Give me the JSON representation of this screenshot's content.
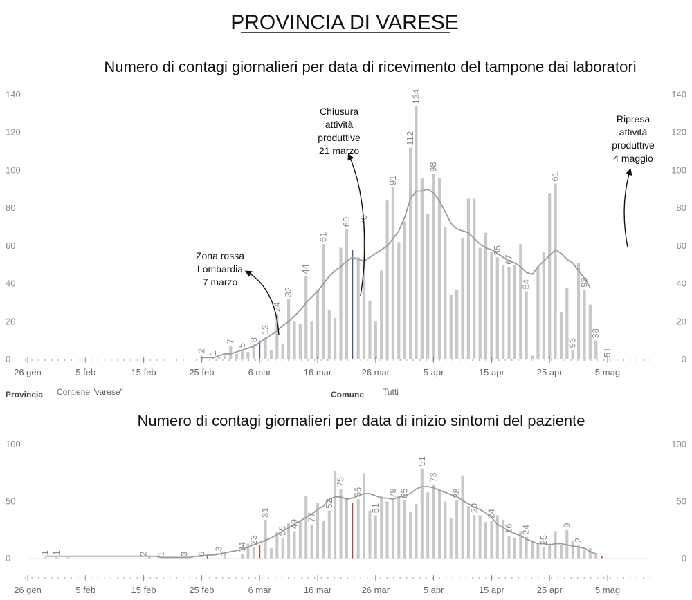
{
  "header": {
    "title": "PROVINCIA DI VARESE"
  },
  "filters": {
    "provincia_label": "Provincia",
    "provincia_value": "Contiene \"varese\"",
    "comune_label": "Comune",
    "comune_value": "Tutti"
  },
  "chart_data": [
    {
      "type": "bar",
      "title": "Numero di contagi giornalieri per data di ricevimento del tampone dai laboratori",
      "xlabel": "",
      "ylabel": "",
      "ylim": [
        0,
        140
      ],
      "yticks": [
        0,
        20,
        40,
        60,
        80,
        100,
        120,
        140
      ],
      "xticks": [
        "26 gen",
        "5 feb",
        "15 feb",
        "25 feb",
        "6 mar",
        "16 mar",
        "26 mar",
        "5 apr",
        "15 apr",
        "25 apr",
        "5 mag"
      ],
      "x_start": "2020-01-26",
      "x_end": "2020-05-10",
      "bar_start": "2020-02-25",
      "values": [
        2,
        0,
        1,
        1,
        2,
        7,
        3,
        5,
        4,
        8,
        10,
        12,
        5,
        24,
        8,
        32,
        20,
        19,
        44,
        20,
        37,
        61,
        26,
        22,
        59,
        69,
        58,
        54,
        70,
        31,
        20,
        47,
        84,
        91,
        62,
        73,
        112,
        134,
        96,
        77,
        98,
        96,
        70,
        34,
        37,
        64,
        85,
        85,
        59,
        67,
        57,
        54,
        50,
        49,
        50,
        61,
        36,
        2,
        49,
        57,
        88,
        93,
        25,
        38,
        5,
        51,
        37,
        29,
        10
      ],
      "highlight_dates": [
        "2020-03-06",
        "2020-03-22",
        "2020-05-05"
      ],
      "data_labels": [
        {
          "date": "2020-02-25",
          "label": "2"
        },
        {
          "date": "2020-02-27",
          "label": "1"
        },
        {
          "date": "2020-03-01",
          "label": "7"
        },
        {
          "date": "2020-03-03",
          "label": "5"
        },
        {
          "date": "2020-03-05",
          "label": "8"
        },
        {
          "date": "2020-03-07",
          "label": "12"
        },
        {
          "date": "2020-03-09",
          "label": "24"
        },
        {
          "date": "2020-03-11",
          "label": "32"
        },
        {
          "date": "2020-03-14",
          "label": "44"
        },
        {
          "date": "2020-03-17",
          "label": "61"
        },
        {
          "date": "2020-03-21",
          "label": "69"
        },
        {
          "date": "2020-03-24",
          "label": "70"
        },
        {
          "date": "2020-03-29",
          "label": "91"
        },
        {
          "date": "2020-04-01",
          "label": "112"
        },
        {
          "date": "2020-04-02",
          "label": "134"
        },
        {
          "date": "2020-04-05",
          "label": "98"
        },
        {
          "date": "2020-04-16",
          "label": "85"
        },
        {
          "date": "2020-04-18",
          "label": "67"
        },
        {
          "date": "2020-04-21",
          "label": "54"
        },
        {
          "date": "2020-04-26",
          "label": "61"
        },
        {
          "date": "2020-04-29",
          "label": "93"
        },
        {
          "date": "2020-05-01",
          "label": "93"
        },
        {
          "date": "2020-05-03",
          "label": "38"
        },
        {
          "date": "2020-05-05",
          "label": "51"
        }
      ],
      "moving_average": [
        1,
        1,
        1,
        2,
        3,
        3,
        4,
        5,
        6,
        7,
        9,
        11,
        13,
        15,
        18,
        20,
        23,
        26,
        30,
        33,
        36,
        40,
        44,
        47,
        49,
        52,
        54,
        53,
        52,
        54,
        56,
        58,
        60,
        64,
        68,
        75,
        85,
        89,
        89,
        90,
        88,
        84,
        78,
        72,
        69,
        68,
        67,
        64,
        61,
        59,
        58,
        56,
        54,
        52,
        51,
        49,
        46,
        45,
        49,
        52,
        55,
        58,
        56,
        53,
        51,
        47,
        43,
        38
      ],
      "annotations": [
        {
          "id": "zona_rossa",
          "lines": [
            "Zona rossa",
            "Lombardia",
            "7 marzo"
          ]
        },
        {
          "id": "chiusura",
          "lines": [
            "Chiusura",
            "attività",
            "produttive",
            "21 marzo"
          ]
        },
        {
          "id": "ripresa",
          "lines": [
            "Ripresa",
            "attività",
            "produttive",
            "4 maggio"
          ]
        }
      ]
    },
    {
      "type": "bar",
      "title": "Numero di contagi giornalieri per data di inizio sintomi del paziente",
      "xlabel": "",
      "ylabel": "",
      "ylim": [
        0,
        100
      ],
      "yticks": [
        0,
        50,
        100
      ],
      "xticks": [
        "26 gen",
        "5 feb",
        "15 feb",
        "25 feb",
        "6 mar",
        "16 mar",
        "26 mar",
        "5 apr",
        "15 apr",
        "25 apr",
        "5 mag"
      ],
      "x_start": "2020-01-26",
      "x_end": "2020-05-10",
      "bar_start": "2020-01-29",
      "values": [
        1,
        0,
        1,
        0,
        1,
        0,
        0,
        0,
        0,
        0,
        0,
        0,
        0,
        0,
        0,
        0,
        0,
        0,
        2,
        0,
        0,
        1,
        0,
        0,
        0,
        0,
        0,
        0,
        3,
        0,
        0,
        6,
        0,
        0,
        4,
        13,
        10,
        12,
        34,
        9,
        23,
        18,
        31,
        24,
        33,
        55,
        30,
        49,
        33,
        42,
        77,
        61,
        52,
        49,
        52,
        75,
        42,
        38,
        55,
        50,
        51,
        54,
        51,
        41,
        48,
        79,
        58,
        65,
        60,
        50,
        35,
        51,
        73,
        46,
        38,
        38,
        32,
        33,
        38,
        34,
        20,
        18,
        24,
        19,
        16,
        14,
        10,
        13,
        24,
        12,
        25,
        16,
        12,
        8,
        9,
        5,
        2
      ],
      "highlight_dates": [
        "2020-02-23",
        "2020-02-26",
        "2020-03-06",
        "2020-03-22",
        "2020-05-04"
      ],
      "data_labels": [
        {
          "date": "2020-01-29",
          "label": "1"
        },
        {
          "date": "2020-01-31",
          "label": "1"
        },
        {
          "date": "2020-02-15",
          "label": "2"
        },
        {
          "date": "2020-02-18",
          "label": "1"
        },
        {
          "date": "2020-02-22",
          "label": "3"
        },
        {
          "date": "2020-02-25",
          "label": "6"
        },
        {
          "date": "2020-02-28",
          "label": "13"
        },
        {
          "date": "2020-03-03",
          "label": "34"
        },
        {
          "date": "2020-03-05",
          "label": "23"
        },
        {
          "date": "2020-03-07",
          "label": "31"
        },
        {
          "date": "2020-03-10",
          "label": "55"
        },
        {
          "date": "2020-03-12",
          "label": "49"
        },
        {
          "date": "2020-03-15",
          "label": "77"
        },
        {
          "date": "2020-03-18",
          "label": "52"
        },
        {
          "date": "2020-03-20",
          "label": "75"
        },
        {
          "date": "2020-03-23",
          "label": "55"
        },
        {
          "date": "2020-03-26",
          "label": "51"
        },
        {
          "date": "2020-03-29",
          "label": "79"
        },
        {
          "date": "2020-03-31",
          "label": "65"
        },
        {
          "date": "2020-04-03",
          "label": "51"
        },
        {
          "date": "2020-04-05",
          "label": "73"
        },
        {
          "date": "2020-04-09",
          "label": "38"
        },
        {
          "date": "2020-04-12",
          "label": "20"
        },
        {
          "date": "2020-04-15",
          "label": "24"
        },
        {
          "date": "2020-04-18",
          "label": "16"
        },
        {
          "date": "2020-04-21",
          "label": "24"
        },
        {
          "date": "2020-04-24",
          "label": "25"
        },
        {
          "date": "2020-04-28",
          "label": "9"
        },
        {
          "date": "2020-04-30",
          "label": "2"
        }
      ],
      "moving_average": [
        2,
        2,
        2,
        2,
        2,
        2,
        2,
        2,
        2,
        2,
        2,
        2,
        2,
        2,
        2,
        2,
        2,
        2,
        2,
        2,
        1,
        1,
        1,
        1,
        1,
        1,
        2,
        2,
        3,
        3,
        4,
        5,
        6,
        7,
        8,
        10,
        12,
        14,
        16,
        18,
        21,
        24,
        27,
        30,
        33,
        36,
        39,
        43,
        46,
        52,
        54,
        54,
        52,
        53,
        55,
        57,
        57,
        55,
        53,
        53,
        52,
        54,
        55,
        57,
        61,
        63,
        63,
        62,
        60,
        58,
        56,
        54,
        51,
        48,
        45,
        43,
        40,
        36,
        30,
        27,
        24,
        22,
        20,
        17,
        15,
        13,
        13,
        12,
        13,
        13,
        12,
        11,
        10,
        9,
        6,
        4
      ]
    }
  ],
  "colors": {
    "bar": "#c8c8c8",
    "bar_highlight_top": "#3a5f8f",
    "bar_highlight_bottom": "#b8443e",
    "line": "#9a9a9a",
    "tick_text": "#888888"
  }
}
